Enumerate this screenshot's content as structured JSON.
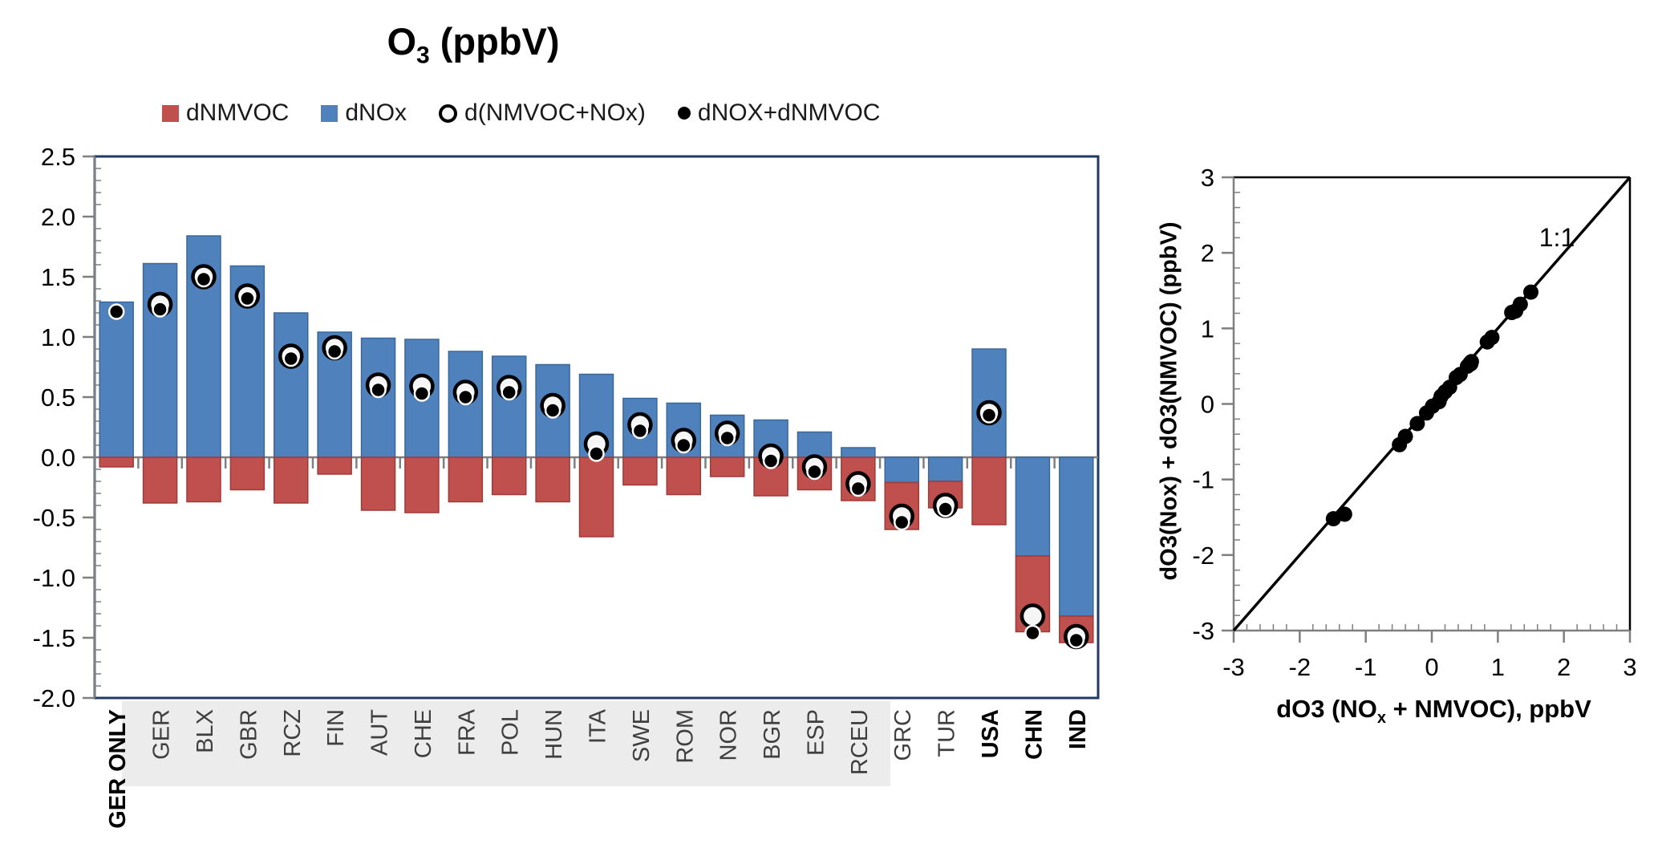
{
  "title": {
    "pre": "O",
    "sub": "3",
    "post": " (ppbV)",
    "text": "O3 (ppbV)"
  },
  "legend": {
    "items": [
      {
        "label": "dNMVOC",
        "marker": "red-square-icon",
        "color": "#C0504D"
      },
      {
        "label": "dNOx",
        "marker": "blue-square-icon",
        "color": "#4F81BD"
      },
      {
        "label": "d(NMVOC+NOx)",
        "marker": "open-circle-icon"
      },
      {
        "label": "dNOX+dNMVOC",
        "marker": "filled-circle-icon"
      }
    ]
  },
  "colors": {
    "bar_red": "#C0504D",
    "bar_red_stroke": "#9E3B39",
    "bar_blue": "#4F81BD",
    "bar_blue_stroke": "#3A689B",
    "border_navy": "#1F3864",
    "axis_gray": "#7F7F7F",
    "band_gray": "#ECECEC",
    "gray_label": "#3F3F3F"
  },
  "chart_data": [
    {
      "type": "bar",
      "title": "O3 (ppbV)",
      "categories": [
        "GER ONLY",
        "GER",
        "BLX",
        "GBR",
        "RCZ",
        "FIN",
        "AUT",
        "CHE",
        "FRA",
        "POL",
        "HUN",
        "ITA",
        "SWE",
        "ROM",
        "NOR",
        "BGR",
        "ESP",
        "RCEU",
        "GRC",
        "TUR",
        "USA",
        "CHN",
        "IND"
      ],
      "series": [
        {
          "name": "dNMVOC",
          "color": "#C0504D",
          "values": [
            -0.08,
            -0.38,
            -0.37,
            -0.27,
            -0.38,
            -0.14,
            -0.44,
            -0.46,
            -0.37,
            -0.31,
            -0.37,
            -0.66,
            -0.23,
            -0.31,
            -0.16,
            -0.32,
            -0.27,
            -0.36,
            -0.39,
            -0.22,
            -0.56,
            -0.63,
            -0.22
          ]
        },
        {
          "name": "dNOx",
          "color": "#4F81BD",
          "values": [
            1.29,
            1.61,
            1.84,
            1.59,
            1.2,
            1.04,
            0.99,
            0.98,
            0.88,
            0.84,
            0.77,
            0.69,
            0.49,
            0.45,
            0.35,
            0.31,
            0.21,
            0.08,
            -0.21,
            -0.2,
            0.9,
            -0.82,
            -1.32
          ]
        }
      ],
      "markers": [
        {
          "name": "d(NMVOC+NOx)",
          "style": "open",
          "values": [
            null,
            1.27,
            1.5,
            1.34,
            0.84,
            0.91,
            0.6,
            0.59,
            0.54,
            0.58,
            0.43,
            0.11,
            0.27,
            0.14,
            0.2,
            0.01,
            -0.08,
            -0.22,
            -0.49,
            -0.4,
            0.37,
            -1.32,
            -1.49
          ]
        },
        {
          "name": "dNOX+dNMVOC",
          "style": "filled",
          "values": [
            1.21,
            1.23,
            1.48,
            1.32,
            0.82,
            0.88,
            0.56,
            0.53,
            0.5,
            0.54,
            0.39,
            0.03,
            0.22,
            0.1,
            0.16,
            -0.03,
            -0.12,
            -0.26,
            -0.54,
            -0.43,
            0.35,
            -1.46,
            -1.52
          ]
        }
      ],
      "ylim": [
        -2.0,
        2.5
      ],
      "ytick_step": 0.5,
      "y_ticks": [
        "2.5",
        "2.0",
        "1.5",
        "1.0",
        "0.5",
        "0.0",
        "-0.5",
        "-1.0",
        "-1.5",
        "-2.0"
      ],
      "grid": false,
      "gray_band_categories": [
        "GER",
        "BLX",
        "GBR",
        "RCZ",
        "FIN",
        "AUT",
        "CHE",
        "FRA",
        "POL",
        "HUN",
        "ITA",
        "SWE",
        "ROM",
        "NOR",
        "BGR",
        "ESP",
        "RCEU",
        "GRC",
        "TUR"
      ],
      "bold_categories": [
        "GER ONLY",
        "USA",
        "CHN",
        "IND"
      ]
    },
    {
      "type": "scatter",
      "points": [
        [
          1.21,
          1.21
        ],
        [
          1.27,
          1.23
        ],
        [
          1.5,
          1.48
        ],
        [
          1.34,
          1.32
        ],
        [
          0.84,
          0.82
        ],
        [
          0.91,
          0.88
        ],
        [
          0.6,
          0.56
        ],
        [
          0.59,
          0.53
        ],
        [
          0.54,
          0.5
        ],
        [
          0.58,
          0.54
        ],
        [
          0.43,
          0.39
        ],
        [
          0.11,
          0.03
        ],
        [
          0.27,
          0.22
        ],
        [
          0.14,
          0.1
        ],
        [
          0.2,
          0.16
        ],
        [
          0.01,
          -0.03
        ],
        [
          -0.08,
          -0.12
        ],
        [
          -0.22,
          -0.26
        ],
        [
          -0.49,
          -0.54
        ],
        [
          -0.4,
          -0.43
        ],
        [
          0.37,
          0.35
        ],
        [
          -1.32,
          -1.46
        ],
        [
          -1.49,
          -1.52
        ]
      ],
      "xlim": [
        -3,
        3
      ],
      "ylim": [
        -3,
        3
      ],
      "x_ticks": [
        "-3",
        "-2",
        "-1",
        "0",
        "1",
        "2",
        "3"
      ],
      "y_ticks": [
        "3",
        "2",
        "1",
        "0",
        "-1",
        "-2",
        "-3"
      ],
      "minor_tick_step": 0.2,
      "xlabel": "dO3 (NOx + NMVOC), ppbV",
      "xlabel_parts": {
        "pre": "dO3 (NO",
        "sub": "x",
        "post": " + NMVOC), ppbV"
      },
      "ylabel": "dO3(Nox) + dO3(NMVOC) (ppbV)",
      "annotation": "1:1",
      "identity_line": true,
      "legend_position": "none"
    }
  ]
}
